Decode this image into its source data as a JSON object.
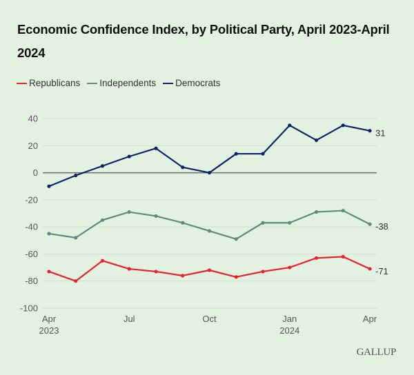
{
  "title": "Economic Confidence Index, by Political Party, April 2023-April 2024",
  "logo": "GALLUP",
  "legend": [
    {
      "label": "Republicans",
      "color": "#e8202f"
    },
    {
      "label": "Independents",
      "color": "#5f8a80"
    },
    {
      "label": "Democrats",
      "color": "#0c2466"
    }
  ],
  "chart_data": {
    "type": "line",
    "title": "Economic Confidence Index, by Political Party, April 2023-April 2024",
    "xlabel": "",
    "ylabel": "",
    "ylim": [
      -100,
      40
    ],
    "yticks": [
      40,
      20,
      0,
      -20,
      -40,
      -60,
      -80,
      -100
    ],
    "grid": true,
    "legend_position": "top-left",
    "x": [
      "Apr 2023",
      "May 2023",
      "Jun 2023",
      "Jul 2023",
      "Aug 2023",
      "Sep 2023",
      "Oct 2023",
      "Nov 2023",
      "Dec 2023",
      "Jan 2024",
      "Feb 2024",
      "Mar 2024",
      "Apr 2024"
    ],
    "xtick_labels": [
      {
        "index": 0,
        "line1": "Apr",
        "line2": "2023"
      },
      {
        "index": 3,
        "line1": "Jul",
        "line2": ""
      },
      {
        "index": 6,
        "line1": "Oct",
        "line2": ""
      },
      {
        "index": 9,
        "line1": "Jan",
        "line2": "2024"
      },
      {
        "index": 12,
        "line1": "Apr",
        "line2": ""
      }
    ],
    "series": [
      {
        "name": "Republicans",
        "color": "#e8202f",
        "end_label": "-71",
        "values": [
          -73,
          -80,
          -65,
          -71,
          -73,
          -76,
          -72,
          -77,
          -73,
          -70,
          -63,
          -62,
          -71
        ]
      },
      {
        "name": "Independents",
        "color": "#5f8a80",
        "end_label": "-38",
        "values": [
          -45,
          -48,
          -35,
          -29,
          -32,
          -37,
          -43,
          -49,
          -37,
          -37,
          -29,
          -28,
          -38
        ]
      },
      {
        "name": "Democrats",
        "color": "#0c2466",
        "end_label": "31",
        "values": [
          -10,
          -2,
          5,
          12,
          18,
          4,
          0,
          14,
          14,
          35,
          24,
          35,
          31
        ]
      }
    ]
  }
}
